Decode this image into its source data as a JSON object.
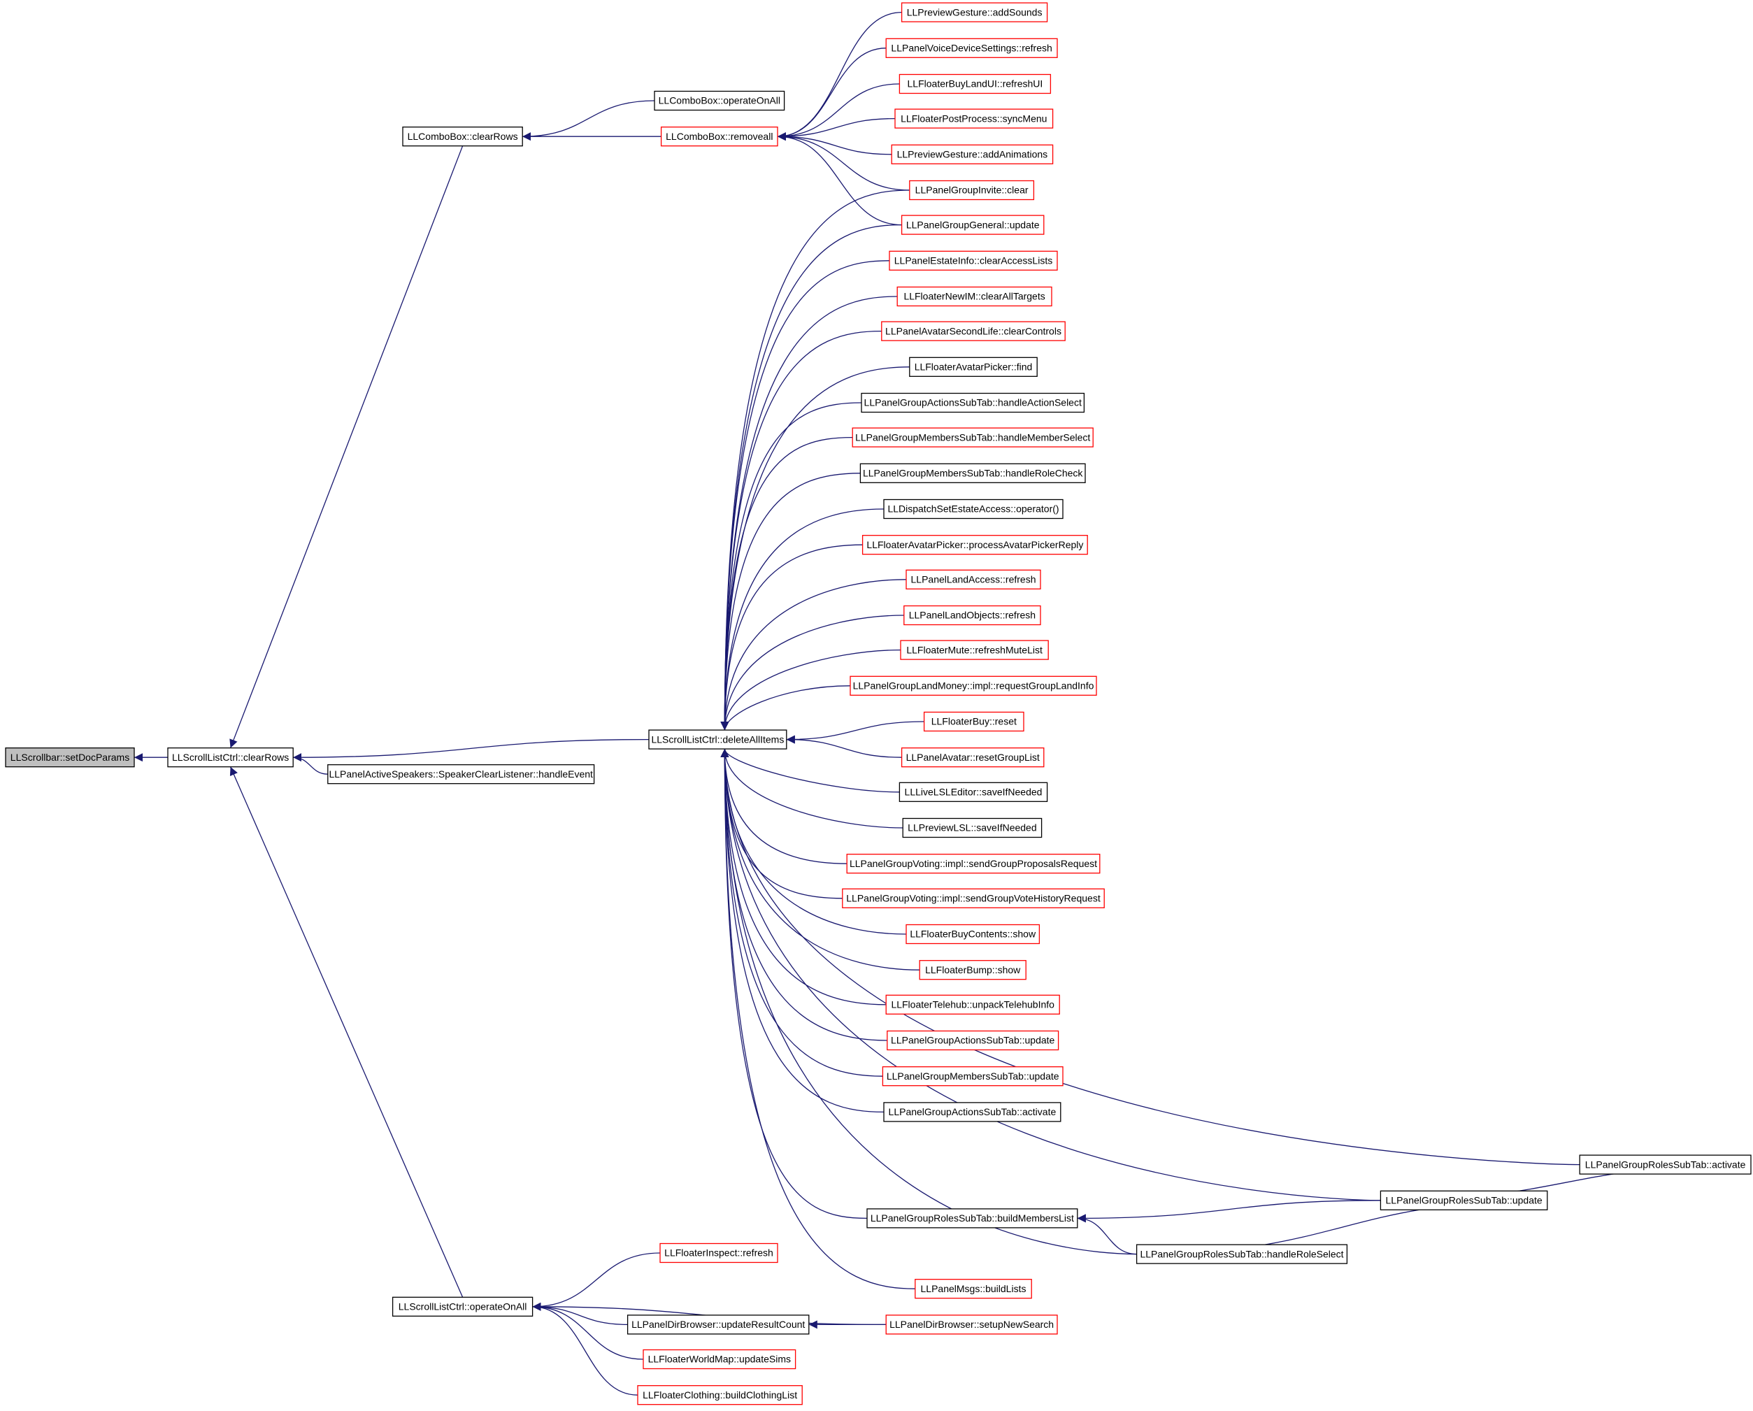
{
  "nodes": [
    {
      "label": "LLScrollbar::setDocParams"
    },
    {
      "label": "LLScrollListCtrl::clearRows"
    },
    {
      "label": "LLComboBox::clearRows"
    },
    {
      "label": "LLPanelActiveSpeakers::SpeakerClearListener::handleEvent"
    },
    {
      "label": "LLScrollListCtrl::operateOnAll"
    },
    {
      "label": "LLComboBox::operateOnAll"
    },
    {
      "label": "LLComboBox::removeall"
    },
    {
      "label": "LLScrollListCtrl::deleteAllItems"
    },
    {
      "label": "LLPreviewGesture::addSounds"
    },
    {
      "label": "LLPanelVoiceDeviceSettings::refresh"
    },
    {
      "label": "LLFloaterBuyLandUI::refreshUI"
    },
    {
      "label": "LLFloaterPostProcess::syncMenu"
    },
    {
      "label": "LLPreviewGesture::addAnimations"
    },
    {
      "label": "LLPanelGroupInvite::clear"
    },
    {
      "label": "LLPanelGroupGeneral::update"
    },
    {
      "label": "LLPanelEstateInfo::clearAccessLists"
    },
    {
      "label": "LLFloaterNewIM::clearAllTargets"
    },
    {
      "label": "LLPanelAvatarSecondLife::clearControls"
    },
    {
      "label": "LLFloaterAvatarPicker::find"
    },
    {
      "label": "LLPanelGroupActionsSubTab::handleActionSelect"
    },
    {
      "label": "LLPanelGroupMembersSubTab::handleMemberSelect"
    },
    {
      "label": "LLPanelGroupMembersSubTab::handleRoleCheck"
    },
    {
      "label": "LLDispatchSetEstateAccess::operator()"
    },
    {
      "label": "LLFloaterAvatarPicker::processAvatarPickerReply"
    },
    {
      "label": "LLPanelLandAccess::refresh"
    },
    {
      "label": "LLPanelLandObjects::refresh"
    },
    {
      "label": "LLFloaterMute::refreshMuteList"
    },
    {
      "label": "LLPanelGroupLandMoney::impl::requestGroupLandInfo"
    },
    {
      "label": "LLFloaterBuy::reset"
    },
    {
      "label": "LLPanelAvatar::resetGroupList"
    },
    {
      "label": "LLLiveLSLEditor::saveIfNeeded"
    },
    {
      "label": "LLPreviewLSL::saveIfNeeded"
    },
    {
      "label": "LLPanelGroupVoting::impl::sendGroupProposalsRequest"
    },
    {
      "label": "LLPanelGroupVoting::impl::sendGroupVoteHistoryRequest"
    },
    {
      "label": "LLFloaterBuyContents::show"
    },
    {
      "label": "LLFloaterBump::show"
    },
    {
      "label": "LLFloaterTelehub::unpackTelehubInfo"
    },
    {
      "label": "LLPanelGroupActionsSubTab::update"
    },
    {
      "label": "LLPanelGroupMembersSubTab::update"
    },
    {
      "label": "LLPanelGroupActionsSubTab::activate"
    },
    {
      "label": "LLPanelGroupRolesSubTab::activate"
    },
    {
      "label": "LLPanelGroupRolesSubTab::update"
    },
    {
      "label": "LLPanelGroupRolesSubTab::buildMembersList"
    },
    {
      "label": "LLPanelGroupRolesSubTab::handleRoleSelect"
    },
    {
      "label": "LLPanelMsgs::buildLists"
    },
    {
      "label": "LLFloaterInspect::refresh"
    },
    {
      "label": "LLPanelDirBrowser::updateResultCount"
    },
    {
      "label": "LLPanelDirBrowser::setupNewSearch"
    },
    {
      "label": "LLFloaterWorldMap::updateSims"
    },
    {
      "label": "LLFloaterClothing::buildClothingList"
    }
  ]
}
